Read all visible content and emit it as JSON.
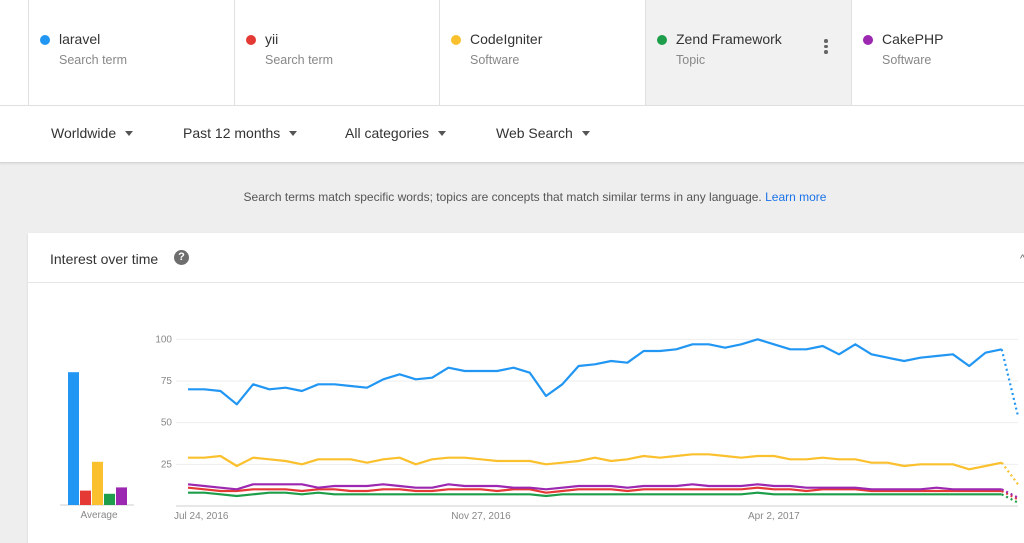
{
  "terms": [
    {
      "name": "laravel",
      "sub": "Search term",
      "color": "#2196f3",
      "selected": false
    },
    {
      "name": "yii",
      "sub": "Search term",
      "color": "#e53935",
      "selected": false
    },
    {
      "name": "CodeIgniter",
      "sub": "Software",
      "color": "#fbc02d",
      "selected": false
    },
    {
      "name": "Zend Framework",
      "sub": "Topic",
      "color": "#1e9e4a",
      "selected": true
    },
    {
      "name": "CakePHP",
      "sub": "Software",
      "color": "#9c27b0",
      "selected": false
    }
  ],
  "filters": {
    "region": "Worldwide",
    "time": "Past 12 months",
    "category": "All categories",
    "search_type": "Web Search"
  },
  "info": {
    "text": "Search terms match specific words; topics are concepts that match similar terms in any language.",
    "link": "Learn more"
  },
  "card": {
    "title": "Interest over time",
    "help_icon": "?",
    "share_icon": "^"
  },
  "chart_data": {
    "type": "line",
    "y_ticks": [
      25,
      50,
      75,
      100
    ],
    "ylim": [
      0,
      105
    ],
    "x_tick_labels": [
      "Jul 24, 2016",
      "Nov 27, 2016",
      "Apr 2, 2017"
    ],
    "x_tick_indices": [
      0,
      18,
      36
    ],
    "partial_last_point": true,
    "series": [
      {
        "name": "laravel",
        "color": "#2196f3",
        "values": [
          70,
          70,
          69,
          61,
          73,
          70,
          71,
          69,
          73,
          73,
          72,
          71,
          76,
          79,
          76,
          77,
          83,
          81,
          81,
          81,
          83,
          80,
          66,
          73,
          84,
          85,
          87,
          86,
          93,
          93,
          94,
          97,
          97,
          95,
          97,
          100,
          97,
          94,
          94,
          96,
          91,
          97,
          91,
          89,
          87,
          89,
          90,
          91,
          84,
          92,
          94,
          54
        ]
      },
      {
        "name": "yii",
        "color": "#e53935",
        "values": [
          11,
          10,
          9,
          9,
          10,
          10,
          10,
          9,
          10,
          10,
          9,
          9,
          10,
          10,
          9,
          9,
          10,
          10,
          10,
          9,
          10,
          10,
          8,
          9,
          10,
          10,
          10,
          9,
          10,
          10,
          10,
          10,
          10,
          10,
          10,
          11,
          10,
          10,
          9,
          10,
          10,
          10,
          9,
          9,
          9,
          9,
          9,
          9,
          9,
          9,
          9,
          4
        ]
      },
      {
        "name": "CodeIgniter",
        "color": "#fbc02d",
        "values": [
          29,
          29,
          30,
          24,
          29,
          28,
          27,
          25,
          28,
          28,
          28,
          26,
          28,
          29,
          25,
          28,
          29,
          29,
          28,
          27,
          27,
          27,
          25,
          26,
          27,
          29,
          27,
          28,
          30,
          29,
          30,
          31,
          31,
          30,
          29,
          30,
          30,
          28,
          28,
          29,
          28,
          28,
          26,
          26,
          24,
          25,
          25,
          25,
          22,
          24,
          26,
          13
        ]
      },
      {
        "name": "Zend Framework",
        "color": "#1e9e4a",
        "values": [
          8,
          8,
          7,
          6,
          7,
          8,
          8,
          7,
          8,
          7,
          7,
          7,
          7,
          7,
          7,
          7,
          7,
          7,
          7,
          7,
          7,
          7,
          6,
          7,
          7,
          7,
          7,
          7,
          7,
          7,
          7,
          7,
          7,
          7,
          7,
          8,
          7,
          7,
          7,
          7,
          7,
          7,
          7,
          7,
          7,
          7,
          7,
          7,
          7,
          7,
          7,
          2
        ]
      },
      {
        "name": "CakePHP",
        "color": "#9c27b0",
        "values": [
          13,
          12,
          11,
          10,
          13,
          13,
          13,
          13,
          11,
          12,
          12,
          12,
          13,
          12,
          11,
          11,
          13,
          12,
          12,
          12,
          11,
          11,
          10,
          11,
          12,
          12,
          12,
          11,
          12,
          12,
          12,
          13,
          12,
          12,
          12,
          13,
          12,
          12,
          11,
          11,
          11,
          11,
          10,
          10,
          10,
          10,
          11,
          10,
          10,
          10,
          10,
          5
        ]
      }
    ],
    "average": {
      "label": "Average",
      "bars": [
        {
          "name": "laravel",
          "value": 83,
          "color": "#2196f3"
        },
        {
          "name": "yii",
          "value": 9,
          "color": "#e53935"
        },
        {
          "name": "CodeIgniter",
          "value": 27,
          "color": "#fbc02d"
        },
        {
          "name": "Zend Framework",
          "value": 7,
          "color": "#1e9e4a"
        },
        {
          "name": "CakePHP",
          "value": 11,
          "color": "#9c27b0"
        }
      ]
    }
  }
}
